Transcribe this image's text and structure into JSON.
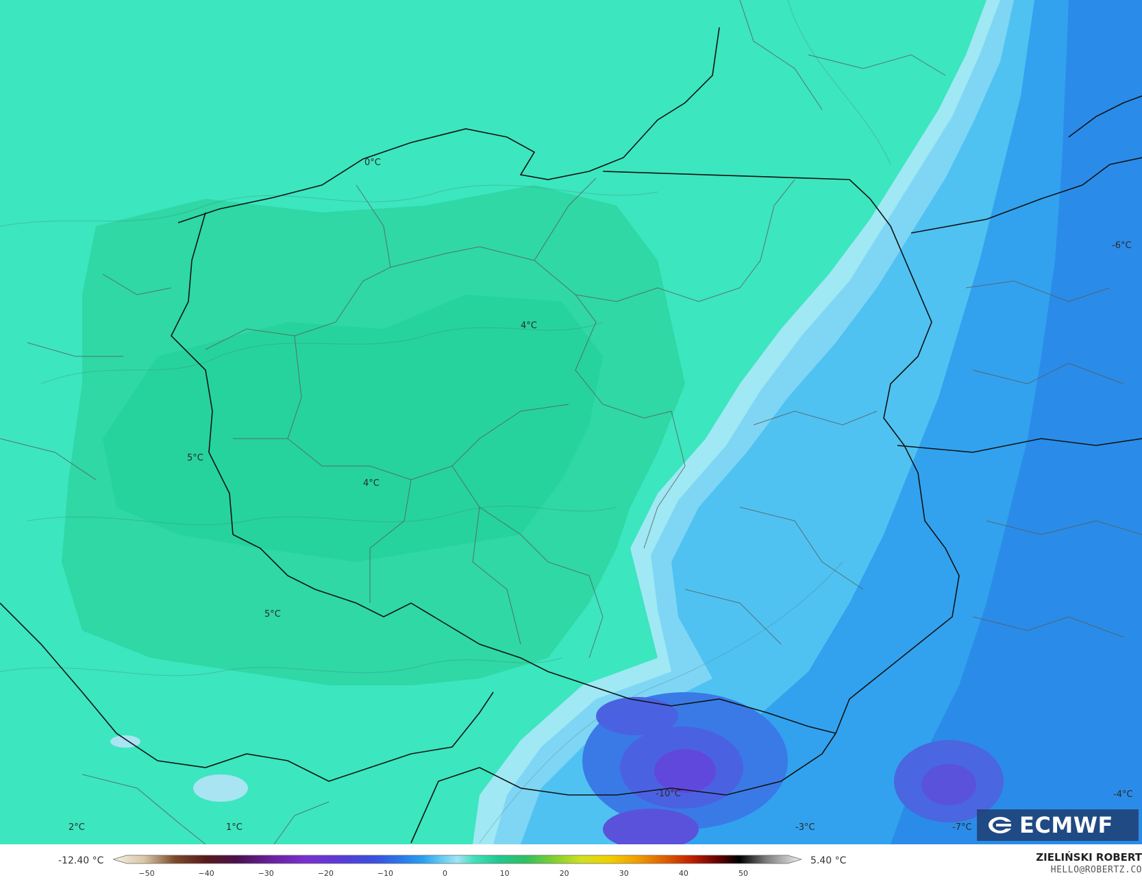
{
  "map": {
    "labels": [
      {
        "id": "0",
        "text": "0°C"
      },
      {
        "id": "1",
        "text": "4°C"
      },
      {
        "id": "2",
        "text": "5°C"
      },
      {
        "id": "3",
        "text": "4°C"
      },
      {
        "id": "4",
        "text": "5°C"
      },
      {
        "id": "5",
        "text": "-6°C"
      },
      {
        "id": "6",
        "text": "-10°C"
      },
      {
        "id": "7",
        "text": "-3°C"
      },
      {
        "id": "8",
        "text": "-7°C"
      },
      {
        "id": "9",
        "text": "-4°C"
      },
      {
        "id": "10",
        "text": "2°C"
      },
      {
        "id": "11",
        "text": "1°C"
      }
    ],
    "colors": {
      "warm_green": "#2fd9a6",
      "mid_green": "#3ee6bb",
      "cool_cyan": "#7ed9f2",
      "light_blue": "#40b8f0",
      "blue": "#2a8fee",
      "deep_blue": "#4a5fe0",
      "purple": "#6a4ad8"
    }
  },
  "colorbar": {
    "min_label": "-12.40 °C",
    "max_label": "5.40 °C",
    "ticks": [
      "−50",
      "−40",
      "−30",
      "−20",
      "−10",
      "0",
      "10",
      "20",
      "30",
      "40",
      "50"
    ]
  },
  "branding": {
    "logo_text": "ECMWF",
    "logo_icon": "ecmwf-swirl-icon",
    "author": "ZIELIŃSKI ROBERT",
    "email": "HELLO@ROBERTZ.CO"
  }
}
